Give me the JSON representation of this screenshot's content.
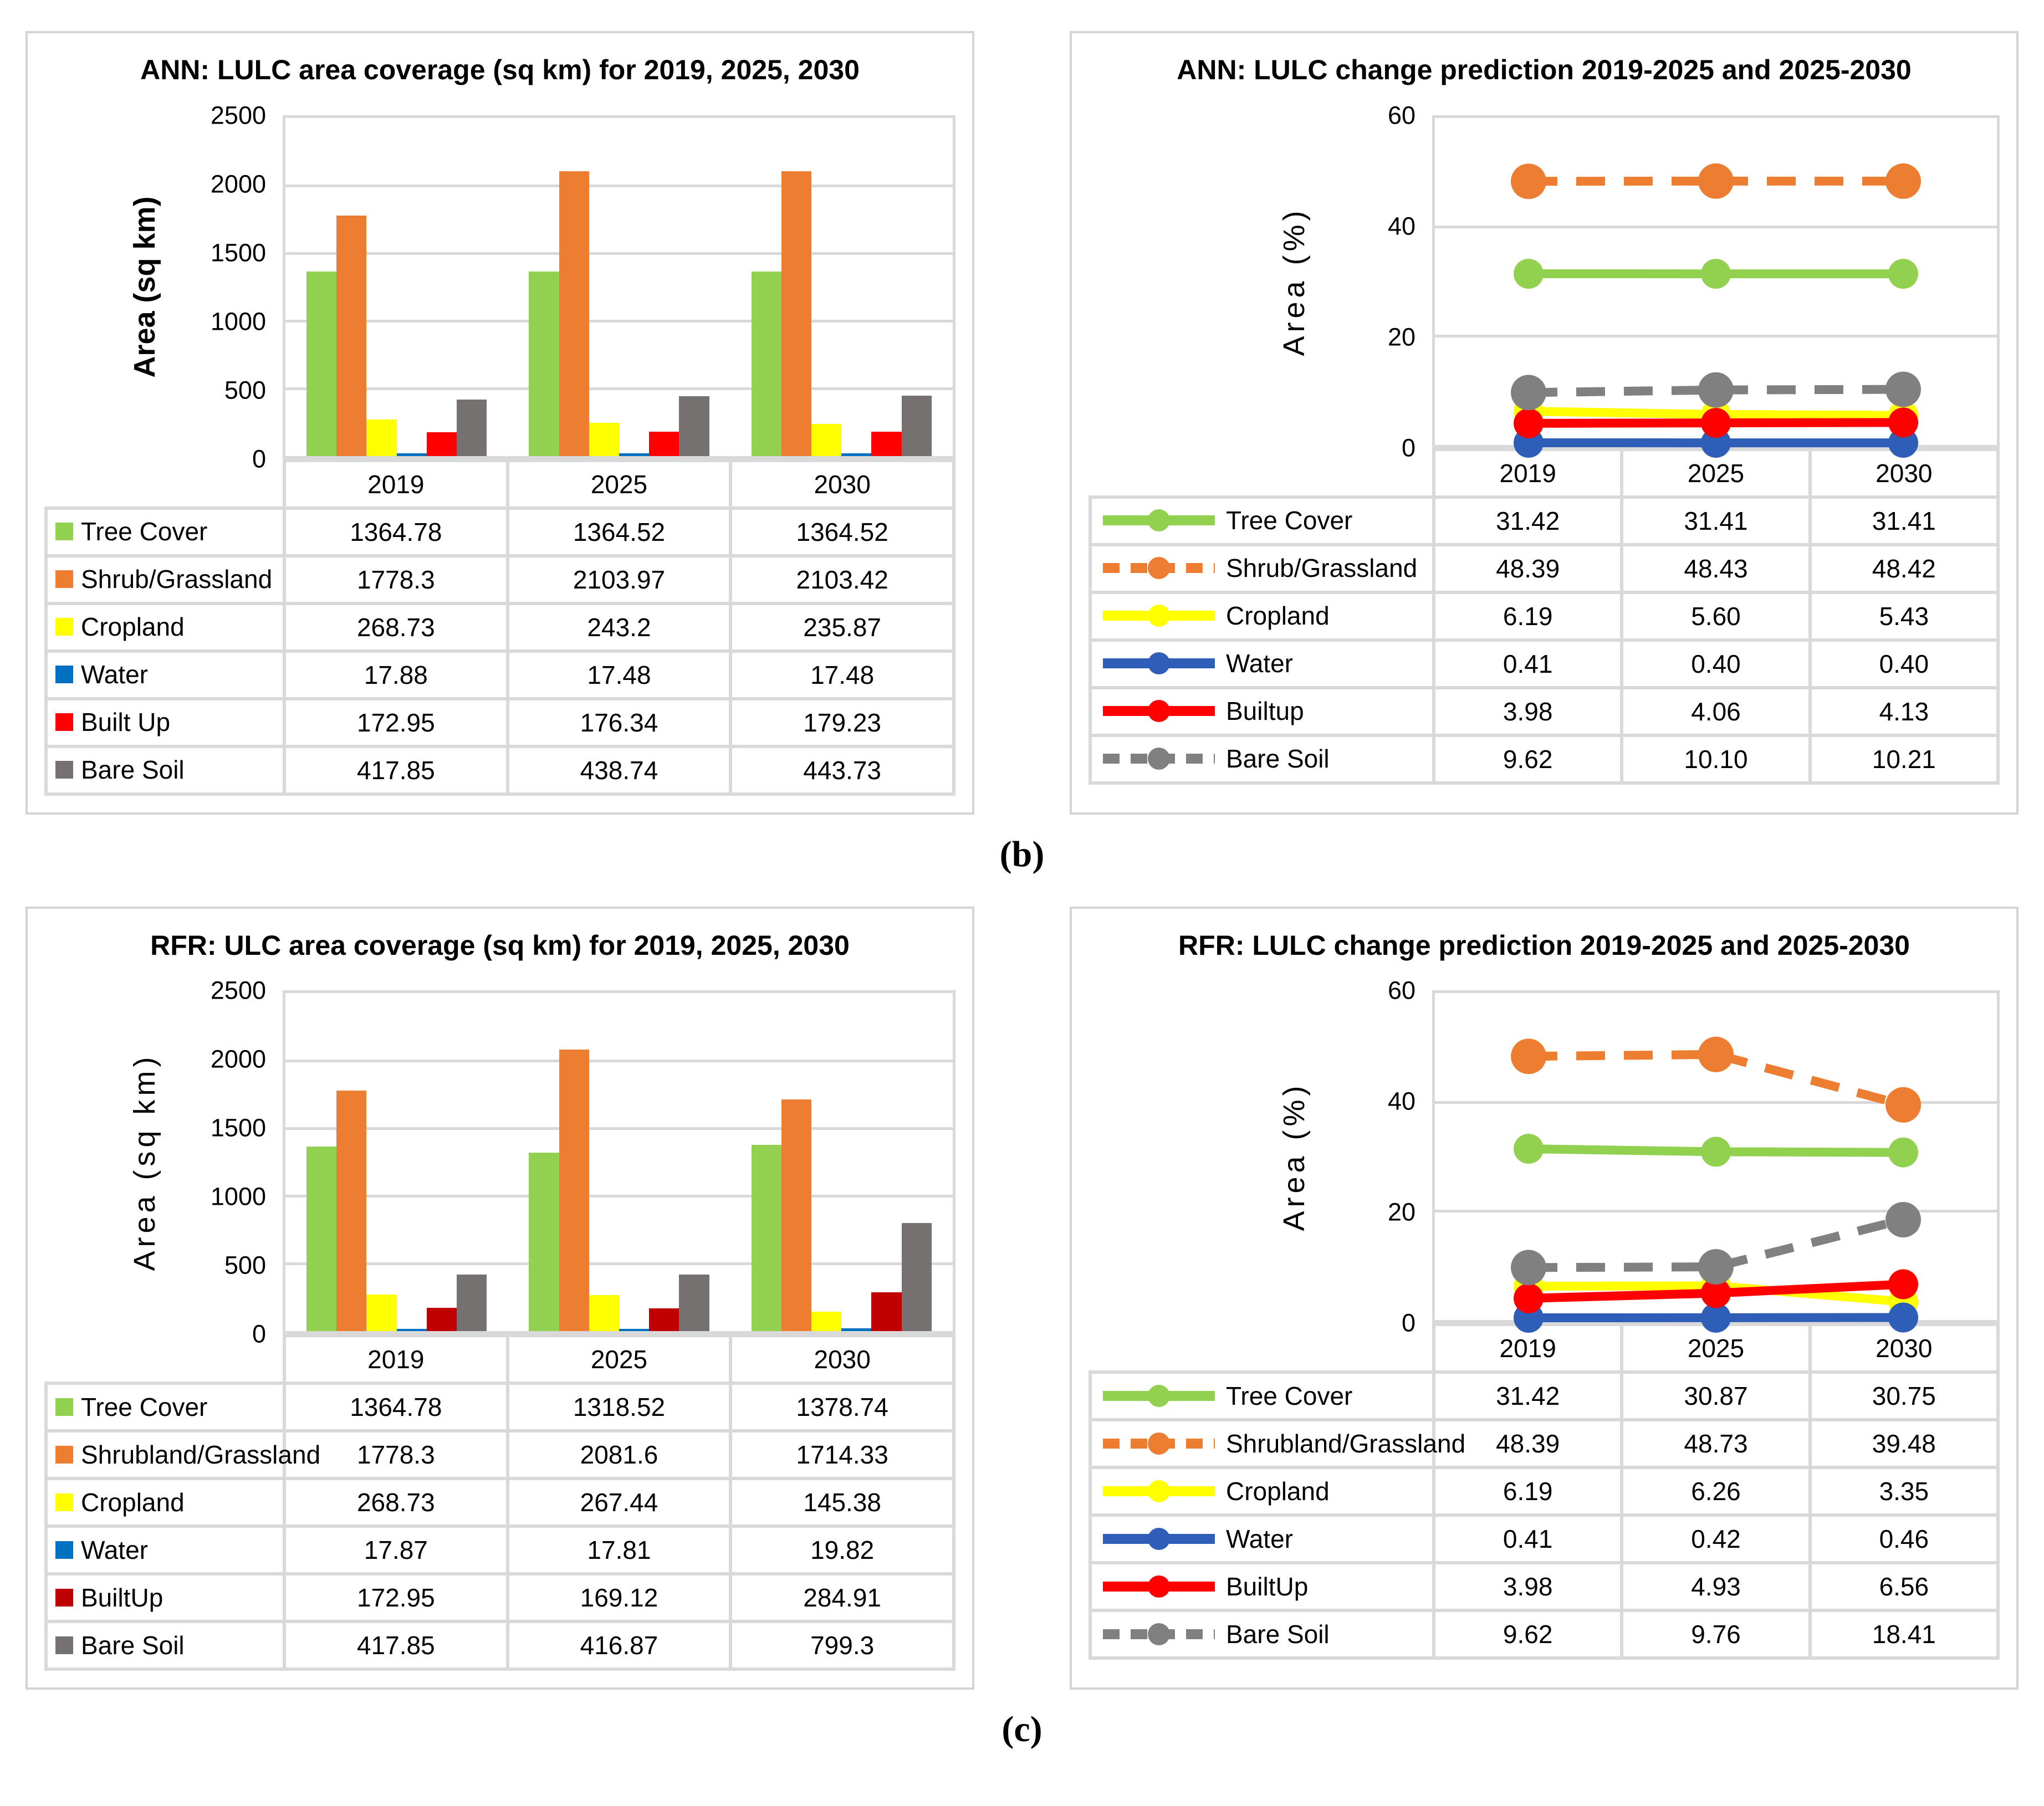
{
  "figure_labels": {
    "b": "(b)",
    "c": "(c)"
  },
  "styles": {
    "grid_color": "#D9D9D9",
    "panel_border": "#D4D4D4",
    "background": "#FFFFFF"
  },
  "chart_data": [
    {
      "type": "bar",
      "title": "ANN: LULC area coverage (sq km) for 2019, 2025, 2030",
      "ylabel": "Area (sq km)",
      "xlabel": "",
      "ylim": [
        0,
        2500
      ],
      "y_ticks": [
        "0",
        "500",
        "1000",
        "1500",
        "2000",
        "2500"
      ],
      "categories": [
        "2019",
        "2025",
        "2030"
      ],
      "grid": true,
      "legend_style": "swatch",
      "legend_position": "table-left",
      "series": [
        {
          "name": "Tree Cover",
          "color": "#92D050",
          "dash": false,
          "values": [
            "1364.78",
            "1364.52",
            "1364.52"
          ]
        },
        {
          "name": "Shrub/Grassland",
          "color": "#ED7D31",
          "dash": false,
          "values": [
            "1778.3",
            "2103.97",
            "2103.42"
          ]
        },
        {
          "name": "Cropland",
          "color": "#FFFF00",
          "dash": false,
          "values": [
            "268.73",
            "243.2",
            "235.87"
          ]
        },
        {
          "name": "Water",
          "color": "#0070C0",
          "dash": false,
          "values": [
            "17.88",
            "17.48",
            "17.48"
          ]
        },
        {
          "name": "Built Up",
          "color": "#FF0000",
          "dash": false,
          "values": [
            "172.95",
            "176.34",
            "179.23"
          ]
        },
        {
          "name": "Bare Soil",
          "color": "#757171",
          "dash": false,
          "values": [
            "417.85",
            "438.74",
            "443.73"
          ]
        }
      ]
    },
    {
      "type": "line",
      "title": "ANN: LULC change prediction 2019-2025 and 2025-2030",
      "ylabel": "Area (%)",
      "xlabel": "",
      "ylim": [
        0,
        60
      ],
      "y_ticks": [
        "0",
        "20",
        "40",
        "60"
      ],
      "categories": [
        "2019",
        "2025",
        "2030"
      ],
      "grid": true,
      "legend_style": "line",
      "legend_position": "table-left",
      "series": [
        {
          "name": "Tree Cover",
          "color": "#92D050",
          "dash": false,
          "values": [
            "31.42",
            "31.41",
            "31.41"
          ]
        },
        {
          "name": "Shrub/Grassland",
          "color": "#ED7D31",
          "dash": true,
          "values": [
            "48.39",
            "48.43",
            "48.42"
          ]
        },
        {
          "name": "Cropland",
          "color": "#FFFF00",
          "dash": false,
          "values": [
            "6.19",
            "5.60",
            "5.43"
          ]
        },
        {
          "name": "Water",
          "color": "#2E5EB8",
          "dash": false,
          "values": [
            "0.41",
            "0.40",
            "0.40"
          ]
        },
        {
          "name": "Builtup",
          "color": "#FF0000",
          "dash": false,
          "values": [
            "3.98",
            "4.06",
            "4.13"
          ]
        },
        {
          "name": "Bare Soil",
          "color": "#808080",
          "dash": true,
          "values": [
            "9.62",
            "10.10",
            "10.21"
          ]
        }
      ]
    },
    {
      "type": "bar",
      "title": "RFR: ULC area coverage (sq km) for 2019, 2025, 2030",
      "ylabel": "Area (sq km)",
      "xlabel": "",
      "ylim": [
        0,
        2500
      ],
      "y_ticks": [
        "0",
        "500",
        "1000",
        "1500",
        "2000",
        "2500"
      ],
      "categories": [
        "2019",
        "2025",
        "2030"
      ],
      "grid": true,
      "legend_style": "swatch",
      "legend_position": "table-left",
      "series": [
        {
          "name": "Tree Cover",
          "color": "#92D050",
          "dash": false,
          "values": [
            "1364.78",
            "1318.52",
            "1378.74"
          ]
        },
        {
          "name": "Shrubland/Grassland",
          "color": "#ED7D31",
          "dash": false,
          "values": [
            "1778.3",
            "2081.6",
            "1714.33"
          ]
        },
        {
          "name": "Cropland",
          "color": "#FFFF00",
          "dash": false,
          "values": [
            "268.73",
            "267.44",
            "145.38"
          ]
        },
        {
          "name": "Water",
          "color": "#0070C0",
          "dash": false,
          "values": [
            "17.87",
            "17.81",
            "19.82"
          ]
        },
        {
          "name": "BuiltUp",
          "color": "#C00000",
          "dash": false,
          "values": [
            "172.95",
            "169.12",
            "284.91"
          ]
        },
        {
          "name": "Bare Soil",
          "color": "#757171",
          "dash": false,
          "values": [
            "417.85",
            "416.87",
            "799.3"
          ]
        }
      ]
    },
    {
      "type": "line",
      "title": "RFR: LULC change prediction 2019-2025 and 2025-2030",
      "ylabel": "Area (%)",
      "xlabel": "",
      "ylim": [
        0,
        60
      ],
      "y_ticks": [
        "0",
        "20",
        "40",
        "60"
      ],
      "categories": [
        "2019",
        "2025",
        "2030"
      ],
      "grid": true,
      "legend_style": "line",
      "legend_position": "table-left",
      "series": [
        {
          "name": "Tree Cover",
          "color": "#92D050",
          "dash": false,
          "values": [
            "31.42",
            "30.87",
            "30.75"
          ]
        },
        {
          "name": "Shrubland/Grassland",
          "color": "#ED7D31",
          "dash": true,
          "values": [
            "48.39",
            "48.73",
            "39.48"
          ]
        },
        {
          "name": "Cropland",
          "color": "#FFFF00",
          "dash": false,
          "values": [
            "6.19",
            "6.26",
            "3.35"
          ]
        },
        {
          "name": "Water",
          "color": "#2E5EB8",
          "dash": false,
          "values": [
            "0.41",
            "0.42",
            "0.46"
          ]
        },
        {
          "name": "BuiltUp",
          "color": "#FF0000",
          "dash": false,
          "values": [
            "3.98",
            "4.93",
            "6.56"
          ]
        },
        {
          "name": "Bare Soil",
          "color": "#808080",
          "dash": true,
          "values": [
            "9.62",
            "9.76",
            "18.41"
          ]
        }
      ]
    }
  ]
}
